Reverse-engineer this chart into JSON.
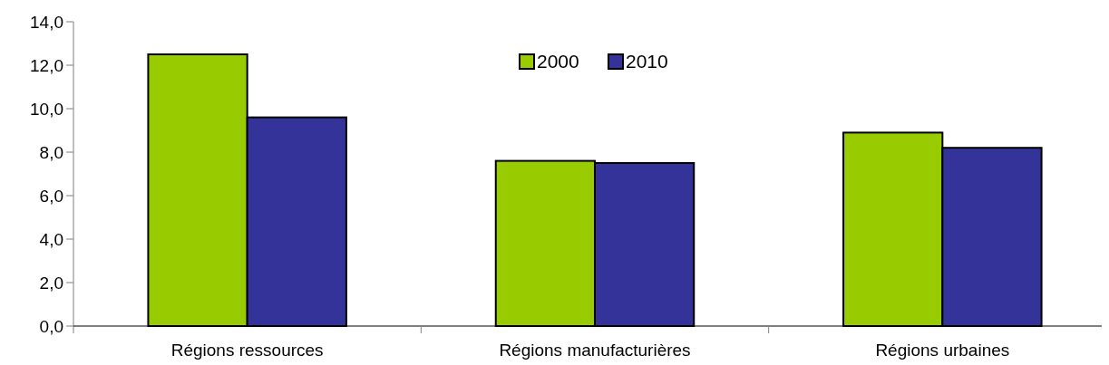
{
  "chart_data": {
    "type": "bar",
    "categories": [
      "Régions ressources",
      "Régions manufacturières",
      "Régions urbaines"
    ],
    "series": [
      {
        "name": "2000",
        "color": "#99cc00",
        "values": [
          12.5,
          7.6,
          8.9
        ]
      },
      {
        "name": "2010",
        "color": "#333399",
        "values": [
          9.6,
          7.5,
          8.2
        ]
      }
    ],
    "ylim": [
      0,
      14
    ],
    "yticks": [
      {
        "value": 0,
        "label": "0,0"
      },
      {
        "value": 2,
        "label": "2,0"
      },
      {
        "value": 4,
        "label": "4,0"
      },
      {
        "value": 6,
        "label": "6,0"
      },
      {
        "value": 8,
        "label": "8,0"
      },
      {
        "value": 10,
        "label": "10,0"
      },
      {
        "value": 12,
        "label": "12,0"
      },
      {
        "value": 14,
        "label": "14,0"
      }
    ],
    "grid": false,
    "legend": "top"
  }
}
